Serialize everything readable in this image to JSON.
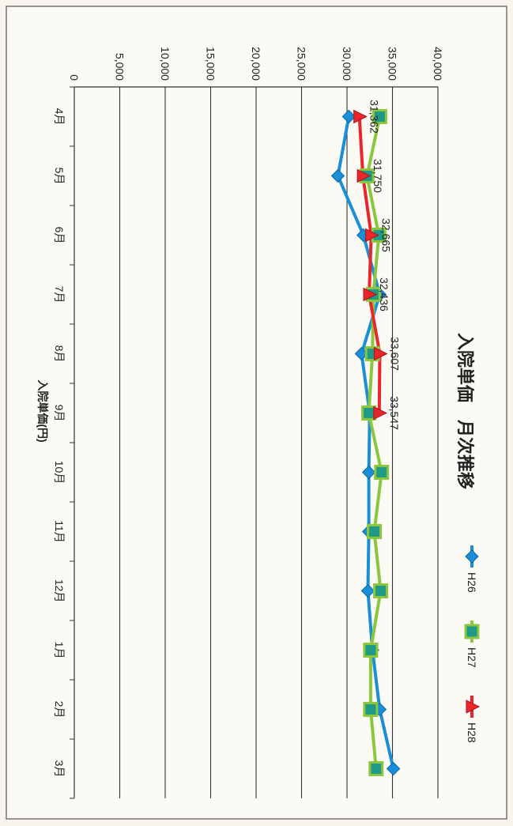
{
  "chart_data": {
    "type": "line",
    "title": "入院単価　月次推移",
    "ylabel": "入院単価(円)",
    "xlabel": "",
    "categories": [
      "4月",
      "5月",
      "6月",
      "7月",
      "8月",
      "9月",
      "10月",
      "11月",
      "12月",
      "1月",
      "2月",
      "3月"
    ],
    "ylim": [
      0,
      40000
    ],
    "yticks": [
      0,
      5000,
      10000,
      15000,
      20000,
      25000,
      30000,
      35000,
      40000
    ],
    "ytick_labels": [
      "0",
      "5,000",
      "10,000",
      "15,000",
      "20,000",
      "25,000",
      "30,000",
      "35,000",
      "40,000"
    ],
    "grid": true,
    "legend_position": "top-right",
    "series": [
      {
        "name": "H26",
        "color": "#1a8fd6",
        "marker": "diamond",
        "values": [
          30200,
          29000,
          31800,
          33600,
          31600,
          32500,
          32400,
          32400,
          32300,
          32800,
          33600,
          35100
        ]
      },
      {
        "name": "H27",
        "color": "#8cc63f",
        "marker": "square",
        "values": [
          33600,
          32200,
          33500,
          32900,
          32800,
          32400,
          33800,
          33000,
          33700,
          32600,
          32600,
          33200
        ]
      },
      {
        "name": "H28",
        "color": "#e8262b",
        "marker": "triangle",
        "values": [
          31362,
          31750,
          32665,
          32436,
          33607,
          33547,
          null,
          null,
          null,
          null,
          null,
          null
        ]
      }
    ],
    "data_labels": [
      {
        "series": "H28",
        "index": 0,
        "text": "31,362"
      },
      {
        "series": "H28",
        "index": 1,
        "text": "31,750"
      },
      {
        "series": "H28",
        "index": 2,
        "text": "32,665"
      },
      {
        "series": "H28",
        "index": 3,
        "text": "32,436"
      },
      {
        "series": "H28",
        "index": 4,
        "text": "33,607"
      },
      {
        "series": "H28",
        "index": 5,
        "text": "33,547"
      }
    ]
  }
}
